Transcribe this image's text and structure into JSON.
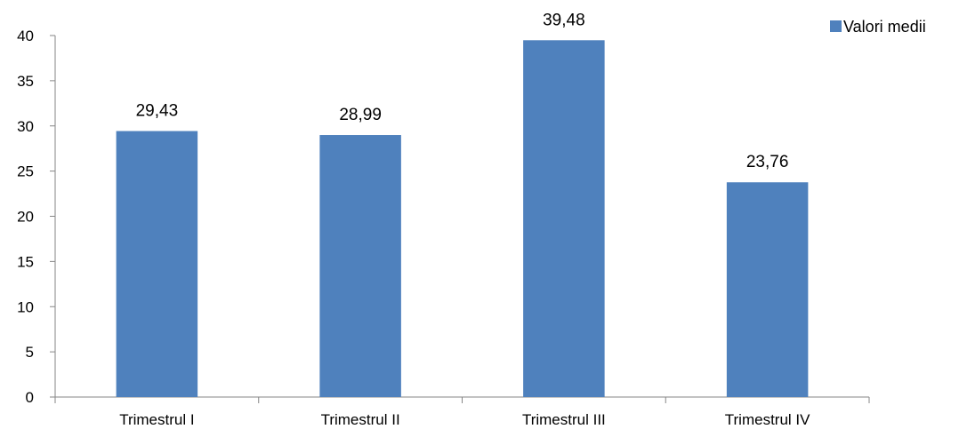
{
  "chart_data": {
    "type": "bar",
    "categories": [
      "Trimestrul I",
      "Trimestrul II",
      "Trimestrul III",
      "Trimestrul IV"
    ],
    "series": [
      {
        "name": "Valori medii",
        "values": [
          29.43,
          28.99,
          39.48,
          23.76
        ],
        "labels": [
          "29,43",
          "28,99",
          "39,48",
          "23,76"
        ],
        "color": "#4F81BD"
      }
    ],
    "ylim": [
      0,
      40
    ],
    "yticks": [
      "0",
      "5",
      "10",
      "15",
      "20",
      "25",
      "30",
      "35",
      "40"
    ],
    "grid": false,
    "legend": "top-right"
  }
}
